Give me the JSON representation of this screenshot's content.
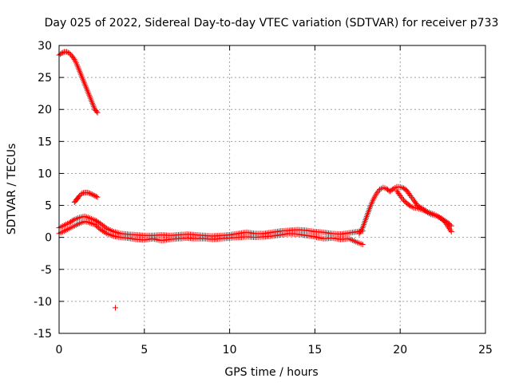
{
  "chart_data": {
    "type": "scatter",
    "title": "Day 025 of 2022, Sidereal Day-to-day VTEC variation (SDTVAR) for receiver p733",
    "xlabel": "GPS time / hours",
    "ylabel": "SDTVAR / TECUs",
    "xlim": [
      0,
      25
    ],
    "ylim": [
      -15,
      30
    ],
    "xticks": [
      0,
      5,
      10,
      15,
      20,
      25
    ],
    "yticks": [
      -15,
      -10,
      -5,
      0,
      5,
      10,
      15,
      20,
      25,
      30
    ],
    "grid": true,
    "marker": "+",
    "series_color": "#ff0000",
    "series": [
      {
        "name": "arc-high",
        "x": [
          0.0,
          0.15,
          0.3,
          0.45,
          0.6,
          0.75,
          0.9,
          1.05,
          1.2,
          1.35,
          1.5,
          1.65,
          1.8,
          1.95,
          2.1,
          2.25
        ],
        "y": [
          28.5,
          28.8,
          29.0,
          29.0,
          28.8,
          28.4,
          27.8,
          27.0,
          26.0,
          25.0,
          24.0,
          23.0,
          22.0,
          21.0,
          20.0,
          19.5
        ]
      },
      {
        "name": "arc-mid",
        "x": [
          0.9,
          1.05,
          1.2,
          1.35,
          1.5,
          1.65,
          1.8,
          1.95,
          2.1,
          2.25
        ],
        "y": [
          5.5,
          6.0,
          6.5,
          6.9,
          7.0,
          7.0,
          6.9,
          6.7,
          6.5,
          6.3
        ]
      },
      {
        "name": "main-band-upper",
        "x": [
          0.0,
          0.3,
          0.6,
          0.9,
          1.2,
          1.5,
          1.8,
          2.1,
          2.4,
          2.8,
          3.2,
          3.6,
          4.0,
          4.5,
          5.0,
          5.5,
          6.0,
          6.5,
          7.0,
          7.5,
          8.0,
          8.5,
          9.0,
          9.5,
          10.0,
          10.5,
          11.0,
          11.5,
          12.0,
          12.5,
          13.0,
          13.5,
          14.0,
          14.5,
          15.0,
          15.5,
          16.0,
          16.5,
          17.0,
          17.5,
          17.8
        ],
        "y": [
          1.5,
          1.9,
          2.3,
          2.8,
          3.1,
          3.3,
          3.0,
          2.7,
          2.2,
          1.4,
          0.9,
          0.6,
          0.5,
          0.4,
          0.3,
          0.3,
          0.4,
          0.3,
          0.4,
          0.5,
          0.4,
          0.3,
          0.2,
          0.3,
          0.4,
          0.6,
          0.8,
          0.6,
          0.6,
          0.8,
          1.0,
          1.1,
          1.2,
          1.1,
          0.9,
          0.8,
          0.6,
          0.5,
          0.7,
          0.9,
          1.0
        ]
      },
      {
        "name": "main-band-lower",
        "x": [
          0.0,
          0.3,
          0.6,
          0.9,
          1.2,
          1.5,
          1.8,
          2.1,
          2.4,
          2.8,
          3.2,
          3.6,
          4.0,
          4.5,
          5.0,
          5.5,
          6.0,
          6.5,
          7.0,
          7.5,
          8.0,
          8.5,
          9.0,
          9.5,
          10.0,
          10.5,
          11.0,
          11.5,
          12.0,
          12.5,
          13.0,
          13.5,
          14.0,
          14.5,
          15.0,
          15.5,
          16.0,
          16.5,
          17.0,
          17.5,
          17.8
        ],
        "y": [
          0.6,
          1.0,
          1.4,
          1.8,
          2.2,
          2.5,
          2.3,
          2.0,
          1.3,
          0.6,
          0.2,
          0.0,
          -0.1,
          -0.3,
          -0.4,
          -0.2,
          -0.5,
          -0.3,
          -0.2,
          -0.1,
          -0.2,
          -0.2,
          -0.3,
          -0.2,
          -0.1,
          0.0,
          0.1,
          0.0,
          0.1,
          0.2,
          0.4,
          0.6,
          0.5,
          0.3,
          0.1,
          -0.2,
          -0.1,
          -0.3,
          -0.2,
          -0.8,
          -1.1
        ]
      },
      {
        "name": "evening-rise",
        "x": [
          17.6,
          17.8,
          18.0,
          18.2,
          18.4,
          18.6,
          18.8,
          19.0,
          19.2,
          19.4,
          19.6,
          19.8,
          20.0,
          20.2,
          20.4,
          20.6,
          20.8,
          21.0,
          21.3,
          21.6,
          22.0,
          22.4,
          22.8,
          23.0
        ],
        "y": [
          0.6,
          1.5,
          3.0,
          4.5,
          5.8,
          6.8,
          7.5,
          7.8,
          7.6,
          7.2,
          7.6,
          7.9,
          7.9,
          7.7,
          7.3,
          6.5,
          5.8,
          5.0,
          4.5,
          4.0,
          3.6,
          3.0,
          2.3,
          1.8
        ]
      },
      {
        "name": "evening-lower",
        "x": [
          19.8,
          20.0,
          20.2,
          20.4,
          20.6,
          20.8,
          21.0,
          21.4,
          21.8,
          22.2,
          22.6,
          23.0
        ],
        "y": [
          7.3,
          6.5,
          5.8,
          5.3,
          4.9,
          4.6,
          4.6,
          4.2,
          3.6,
          3.3,
          2.5,
          0.9
        ]
      },
      {
        "name": "outlier",
        "x": [
          3.3
        ],
        "y": [
          -11.0
        ]
      }
    ]
  }
}
